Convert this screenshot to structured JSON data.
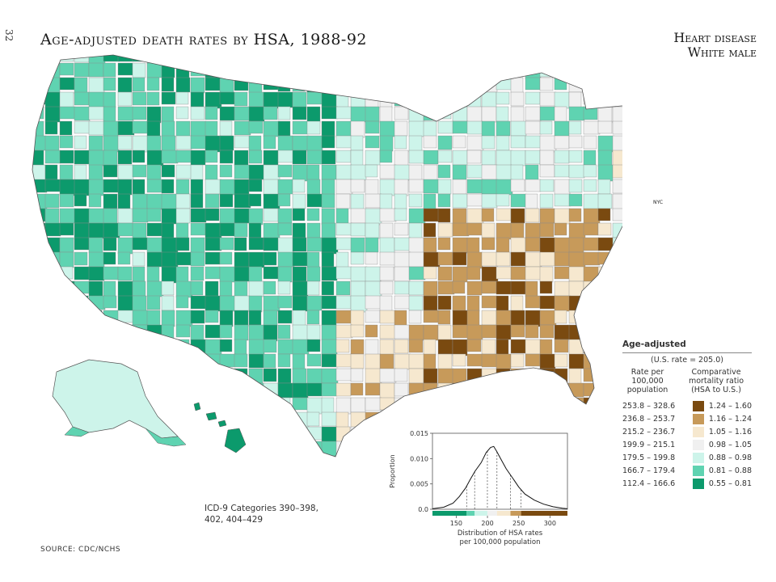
{
  "page_number": "32",
  "title": "Age-adjusted death rates by HSA, 1988-92",
  "subtitle": [
    "Heart disease",
    "White male"
  ],
  "nyc_label": "NYC",
  "legend": {
    "title": "Age-adjusted",
    "us_rate": "(U.S. rate = 205.0)",
    "rate_header": "Rate per 100,000 population",
    "ratio_header": "Comparative mortality ratio (HSA to U.S.)",
    "classes": [
      {
        "rate": "253.8 – 328.6",
        "ratio": "1.24 – 1.60",
        "color": "#7a4a10"
      },
      {
        "rate": "236.8 – 253.7",
        "ratio": "1.16 – 1.24",
        "color": "#c79a5a"
      },
      {
        "rate": "215.2 – 236.7",
        "ratio": "1.05 – 1.16",
        "color": "#f6e8cf"
      },
      {
        "rate": "199.9 – 215.1",
        "ratio": "0.98 – 1.05",
        "color": "#f0f0f0"
      },
      {
        "rate": "179.5 – 199.8",
        "ratio": "0.88 – 0.98",
        "color": "#cdf4ea"
      },
      {
        "rate": "166.7 – 179.4",
        "ratio": "0.81 – 0.88",
        "color": "#5fd3b1"
      },
      {
        "rate": "112.4 – 166.6",
        "ratio": "0.55 – 0.81",
        "color": "#0c9a6c"
      }
    ]
  },
  "icd_note": [
    "ICD-9 Categories 390–398,",
    "402, 404–429"
  ],
  "source": "SOURCE: CDC/NCHS",
  "distribution": {
    "ylabel": "Proportion",
    "xlabel": [
      "Distribution of HSA rates",
      "per 100,000 population"
    ],
    "y_ticks": [
      "0.015",
      "0.010",
      "0.005",
      "0.0"
    ],
    "x_ticks": [
      "150",
      "200",
      "250",
      "300"
    ],
    "x_range": [
      112,
      328
    ],
    "y_range": [
      0,
      0.015
    ],
    "curve": [
      [
        112,
        0.0001
      ],
      [
        130,
        0.0004
      ],
      [
        145,
        0.0012
      ],
      [
        155,
        0.0025
      ],
      [
        165,
        0.0042
      ],
      [
        172,
        0.0058
      ],
      [
        180,
        0.0075
      ],
      [
        190,
        0.0092
      ],
      [
        198,
        0.0112
      ],
      [
        205,
        0.0122
      ],
      [
        210,
        0.0124
      ],
      [
        215,
        0.0114
      ],
      [
        222,
        0.0098
      ],
      [
        230,
        0.008
      ],
      [
        240,
        0.0062
      ],
      [
        250,
        0.0044
      ],
      [
        260,
        0.003
      ],
      [
        275,
        0.0018
      ],
      [
        290,
        0.001
      ],
      [
        305,
        0.0005
      ],
      [
        320,
        0.0002
      ],
      [
        328,
        0.0001
      ]
    ],
    "dividers": [
      166.7,
      179.5,
      199.9,
      215.2,
      236.8,
      253.8
    ]
  }
}
